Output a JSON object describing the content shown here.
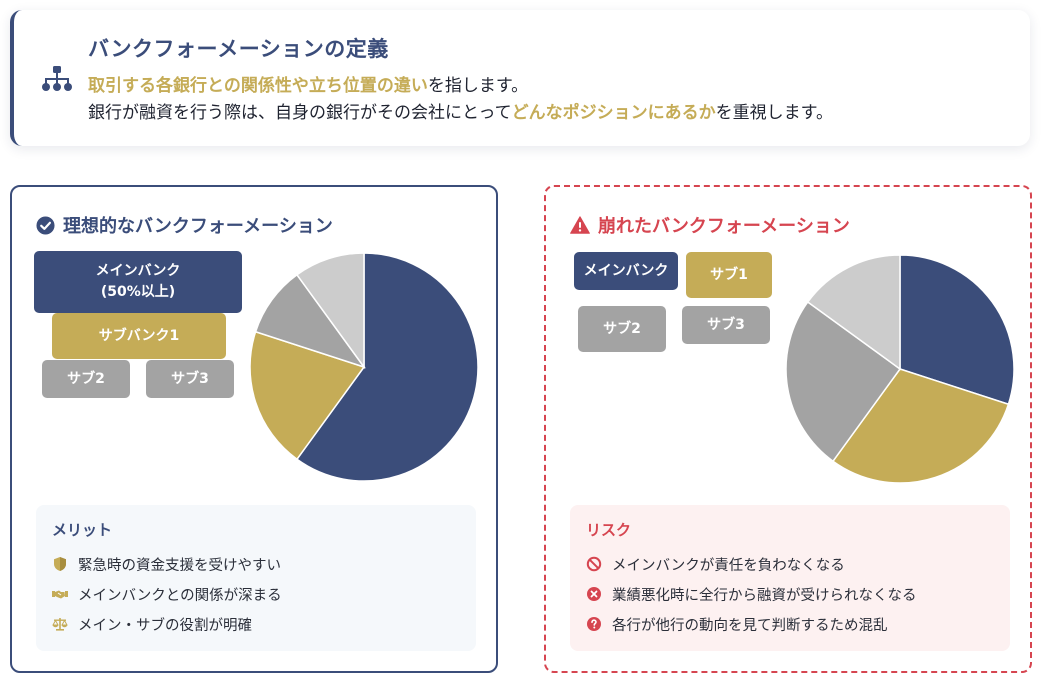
{
  "definition": {
    "title": "バンクフォーメーションの定義",
    "line1_highlight": "取引する各銀行との関係性や立ち位置の違い",
    "line1_rest": "を指します。",
    "line2_prefix": "銀行が融資を行う際は、自身の銀行がその会社にとって",
    "line2_highlight": "どんなポジションにあるか",
    "line2_suffix": "を重視します。",
    "icon": "sitemap-icon"
  },
  "ideal": {
    "title": "理想的なバンクフォーメーション",
    "icon": "check-circle-icon",
    "banks": {
      "main_line1": "メインバンク",
      "main_line2": "(50%以上)",
      "sub1": "サブバンク1",
      "sub2": "サブ2",
      "sub3": "サブ3"
    },
    "merits": {
      "title": "メリット",
      "items": [
        {
          "icon": "shield-icon",
          "text": "緊急時の資金支援を受けやすい"
        },
        {
          "icon": "handshake-icon",
          "text": "メインバンクとの関係が深まる"
        },
        {
          "icon": "balance-scale-icon",
          "text": "メイン・サブの役割が明確"
        }
      ]
    }
  },
  "broken": {
    "title": "崩れたバンクフォーメーション",
    "icon": "warning-icon",
    "banks": {
      "main": "メインバンク",
      "sub1": "サブ1",
      "sub2": "サブ2",
      "sub3": "サブ3"
    },
    "risks": {
      "title": "リスク",
      "items": [
        {
          "icon": "ban-icon",
          "text": "メインバンクが責任を負わなくなる"
        },
        {
          "icon": "times-circle-icon",
          "text": "業績悪化時に全行から融資が受けられなくなる"
        },
        {
          "icon": "question-circle-icon",
          "text": "各行が他行の動向を見て判断するため混乱"
        }
      ]
    }
  },
  "colors": {
    "navy": "#3b4d7a",
    "gold": "#c5ac57",
    "gray": "#a3a3a3",
    "light_gray": "#cccccc",
    "red": "#d64550"
  },
  "chart_data": [
    {
      "type": "pie",
      "title": "理想的なバンクフォーメーション",
      "labels": [
        "メインバンク",
        "サブバンク1",
        "サブ2",
        "サブ3"
      ],
      "values": [
        60,
        20,
        10,
        10
      ]
    },
    {
      "type": "pie",
      "title": "崩れたバンクフォーメーション",
      "labels": [
        "メインバンク",
        "サブ1",
        "サブ2",
        "サブ3"
      ],
      "values": [
        30,
        30,
        25,
        15
      ]
    }
  ]
}
